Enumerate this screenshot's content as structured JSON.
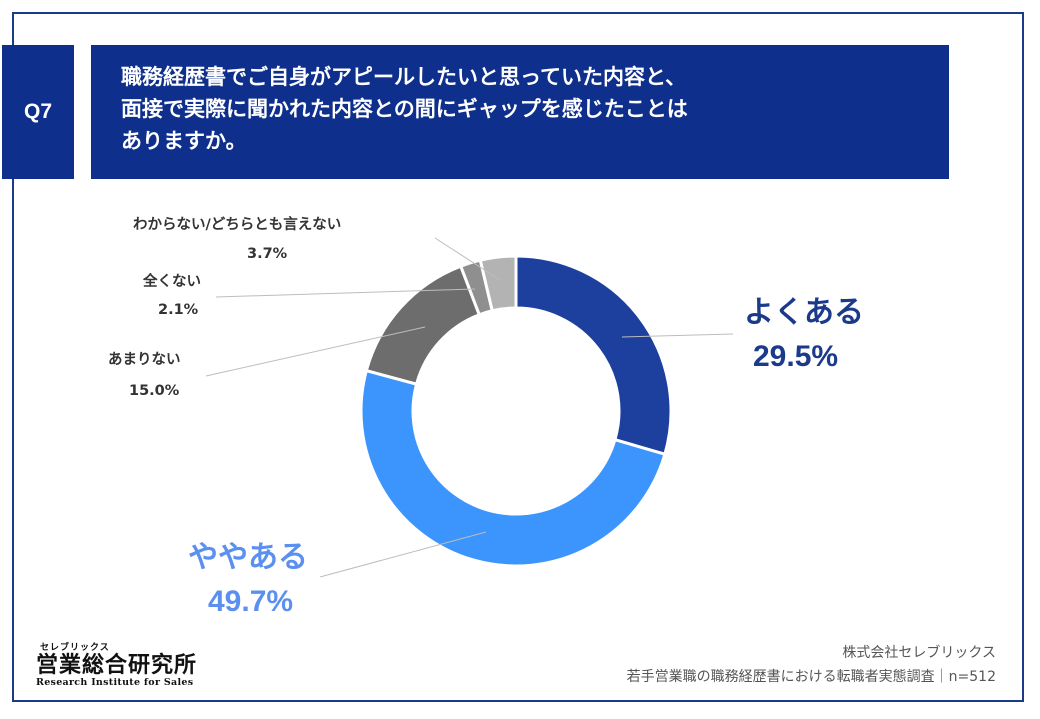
{
  "question": {
    "number": "Q7",
    "lines": [
      "職務経歴書でご自身がアピールしたいと思っていた内容と、",
      "面接で実際に聞かれた内容との間にギャップを感じたことは",
      "ありますか。"
    ]
  },
  "chart_data": {
    "type": "pie",
    "hole": "donut",
    "slices": [
      {
        "label": "よくある",
        "value": 29.5,
        "value_label": "29.5%",
        "color": "#1d3f9e"
      },
      {
        "label": "ややある",
        "value": 49.7,
        "value_label": "49.7%",
        "color": "#3c95fc"
      },
      {
        "label": "あまりない",
        "value": 15.0,
        "value_label": "15.0%",
        "color": "#6d6d6d"
      },
      {
        "label": "全くない",
        "value": 2.1,
        "value_label": "2.1%",
        "color": "#8f8f8f"
      },
      {
        "label": "わからない/どちらとも言えない",
        "value": 3.7,
        "value_label": "3.7%",
        "color": "#b3b3b3"
      }
    ]
  },
  "logo": {
    "ruby": "セレブリックス",
    "main": "営業総合研究所",
    "en": "Research Institute for Sales"
  },
  "source": {
    "company": "株式会社セレブリックス",
    "survey": "若手営業職の職務経歴書における転職者実態調査｜n=512"
  }
}
